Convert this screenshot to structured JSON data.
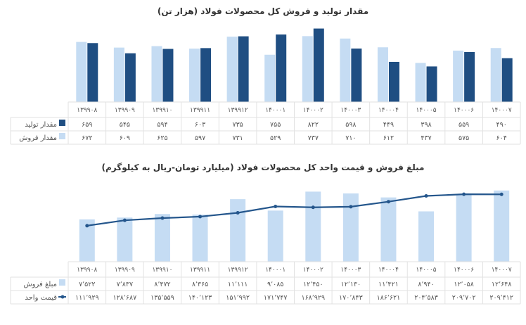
{
  "colors": {
    "production": "#1f4e82",
    "sales_qty": "#c5dcf3",
    "sales_amount": "#c5dcf3",
    "unit_price": "#24568c",
    "grid": "#e2e2e2",
    "text": "#555555"
  },
  "chart_data": [
    {
      "type": "bar",
      "title": "مقدار تولید و فروش کل محصولات فولاد (هزار تن)",
      "categories": [
        "۱۳۹۹۰۸",
        "۱۳۹۹۰۹",
        "۱۳۹۹۱۰",
        "۱۳۹۹۱۱",
        "۱۳۹۹۱۲",
        "۱۴۰۰۰۱",
        "۱۴۰۰۰۲",
        "۱۴۰۰۰۳",
        "۱۴۰۰۰۴",
        "۱۴۰۰۰۵",
        "۱۴۰۰۰۶",
        "۱۴۰۰۰۷"
      ],
      "series": [
        {
          "name": "مقدار تولید",
          "values": [
            659,
            545,
            594,
            603,
            735,
            755,
            822,
            598,
            449,
            398,
            559,
            490
          ]
        },
        {
          "name": "مقدار فروش",
          "values": [
            672,
            609,
            625,
            597,
            731,
            529,
            737,
            710,
            612,
            437,
            575,
            604
          ]
        }
      ],
      "ylim": [
        0,
        850
      ],
      "data_table": true,
      "legend": "data-table"
    },
    {
      "type": "bar+line",
      "title": "مبلغ فروش و قیمت واحد کل محصولات فولاد (میلیارد تومان-ریال به کیلوگرم)",
      "categories": [
        "۱۳۹۹۰۸",
        "۱۳۹۹۰۹",
        "۱۳۹۹۱۰",
        "۱۳۹۹۱۱",
        "۱۳۹۹۱۲",
        "۱۴۰۰۰۱",
        "۱۴۰۰۰۲",
        "۱۴۰۰۰۳",
        "۱۴۰۰۰۴",
        "۱۴۰۰۰۵",
        "۱۴۰۰۰۶",
        "۱۴۰۰۰۷"
      ],
      "series": [
        {
          "name": "مبلغ فروش",
          "type": "bar",
          "values": [
            7522,
            7837,
            8472,
            8365,
            11111,
            9085,
            12450,
            12130,
            11421,
            8940,
            12058,
            12648
          ],
          "ylim": [
            0,
            13000
          ]
        },
        {
          "name": "قیمت واحد",
          "type": "line",
          "values": [
            111929,
            128687,
            135559,
            140123,
            151992,
            171747,
            168929,
            170843,
            186621,
            204583,
            209702,
            209412
          ],
          "ylim": [
            0,
            245000
          ]
        }
      ],
      "data_table": true,
      "legend": "data-table"
    }
  ]
}
